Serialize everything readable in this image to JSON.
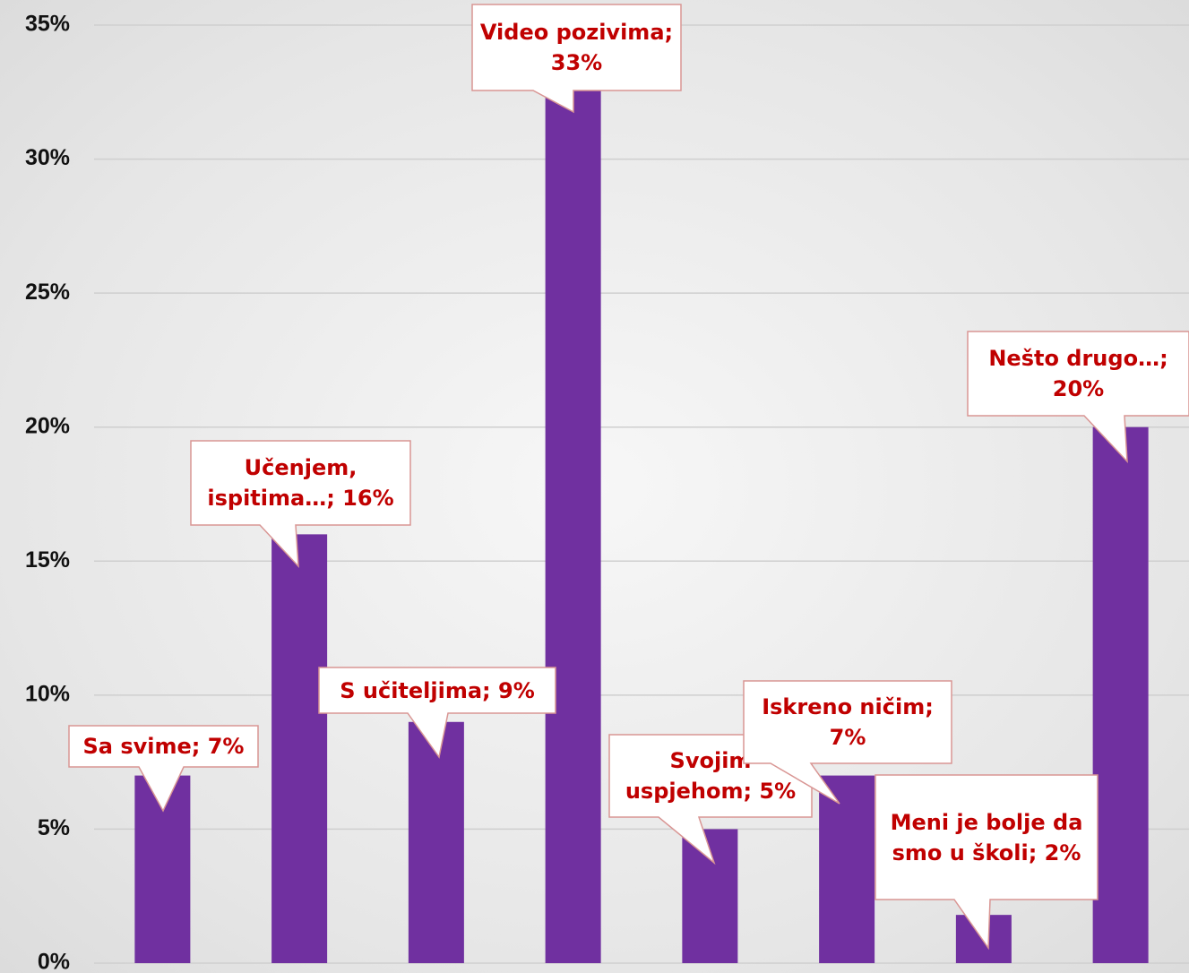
{
  "chart_data": {
    "type": "bar",
    "values": [
      7,
      16,
      9,
      33,
      5,
      7,
      1.8,
      20
    ],
    "value_labels": [
      "Sa svime; 7%",
      "Učenjem, ispitima…; 16%",
      "S učiteljima; 9%",
      "Video pozivima; 33%",
      "Svojim uspjehom; 5%",
      "Iskreno ničim; 7%",
      "Meni je bolje da smo u školi; 2%",
      "Nešto drugo…; 20%"
    ],
    "color": "#7030a0",
    "ylim": [
      0,
      35
    ],
    "yticks": [
      {
        "value": 0,
        "label": "0%"
      },
      {
        "value": 5,
        "label": "5%"
      },
      {
        "value": 10,
        "label": "10%"
      },
      {
        "value": 15,
        "label": "15%"
      },
      {
        "value": 20,
        "label": "20%"
      },
      {
        "value": 25,
        "label": "25%"
      },
      {
        "value": 30,
        "label": "30%"
      },
      {
        "value": 35,
        "label": "35%"
      }
    ],
    "grid": true
  }
}
